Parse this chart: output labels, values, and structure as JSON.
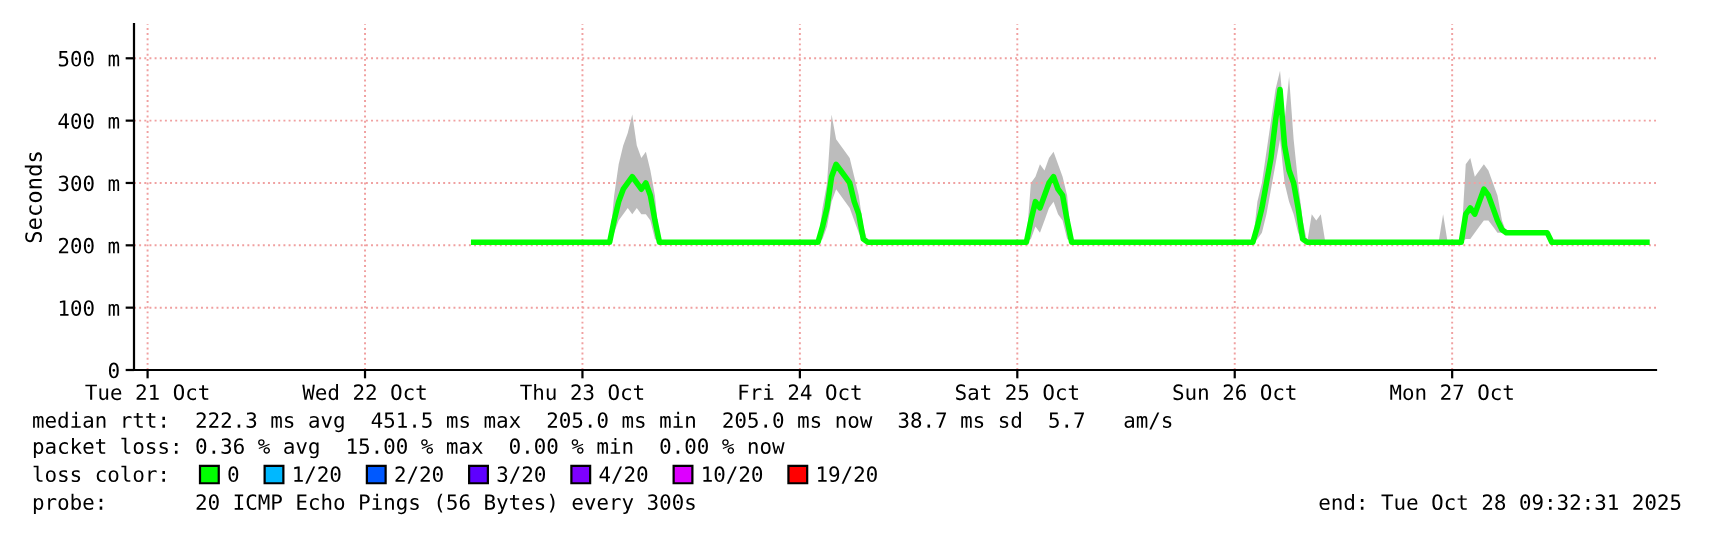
{
  "chart_data": {
    "type": "line",
    "ylabel": "Seconds",
    "xlim": [
      "2025-10-21T10:30",
      "2025-10-28T10:30"
    ],
    "xticks": [
      {
        "value": "2025-10-21T12:00",
        "label": "Tue 21 Oct"
      },
      {
        "value": "2025-10-22T12:00",
        "label": "Wed 22 Oct"
      },
      {
        "value": "2025-10-23T12:00",
        "label": "Thu 23 Oct"
      },
      {
        "value": "2025-10-24T12:00",
        "label": "Fri 24 Oct"
      },
      {
        "value": "2025-10-25T12:00",
        "label": "Sat 25 Oct"
      },
      {
        "value": "2025-10-26T12:00",
        "label": "Sun 26 Oct"
      },
      {
        "value": "2025-10-27T12:00",
        "label": "Mon 27 Oct"
      }
    ],
    "ylim": [
      0,
      555
    ],
    "yticks": [
      0,
      {
        "value": 100,
        "label": "100 m"
      },
      {
        "value": 200,
        "label": "200 m"
      },
      {
        "value": 300,
        "label": "300 m"
      },
      {
        "value": 400,
        "label": "400 m"
      },
      {
        "value": 500,
        "label": "500 m"
      }
    ],
    "grid": true,
    "legend": "bottom",
    "legend_title": "loss color:",
    "series": [
      {
        "name": "0",
        "color": "#00ff00",
        "x": [
          "2025-10-23T00:00",
          "2025-10-23T15:00",
          "2025-10-23T15:30",
          "2025-10-23T16:00",
          "2025-10-23T16:30",
          "2025-10-23T17:00",
          "2025-10-23T17:30",
          "2025-10-23T18:00",
          "2025-10-23T18:30",
          "2025-10-23T19:00",
          "2025-10-23T19:30",
          "2025-10-23T20:00",
          "2025-10-23T20:30",
          "2025-10-24T14:00",
          "2025-10-24T14:30",
          "2025-10-24T15:00",
          "2025-10-24T15:30",
          "2025-10-24T16:00",
          "2025-10-24T16:30",
          "2025-10-24T17:00",
          "2025-10-24T17:30",
          "2025-10-24T18:00",
          "2025-10-24T18:30",
          "2025-10-24T19:00",
          "2025-10-24T19:30",
          "2025-10-25T13:00",
          "2025-10-25T13:30",
          "2025-10-25T14:00",
          "2025-10-25T14:30",
          "2025-10-25T15:00",
          "2025-10-25T15:30",
          "2025-10-25T16:00",
          "2025-10-25T16:30",
          "2025-10-25T17:00",
          "2025-10-25T17:30",
          "2025-10-25T18:00",
          "2025-10-26T14:00",
          "2025-10-26T14:30",
          "2025-10-26T15:00",
          "2025-10-26T15:30",
          "2025-10-26T16:00",
          "2025-10-26T16:30",
          "2025-10-26T17:00",
          "2025-10-26T17:30",
          "2025-10-26T18:00",
          "2025-10-26T18:30",
          "2025-10-26T19:00",
          "2025-10-26T19:30",
          "2025-10-26T20:00",
          "2025-10-26T20:30",
          "2025-10-26T21:00",
          "2025-10-26T21:30",
          "2025-10-26T22:00",
          "2025-10-27T10:30",
          "2025-10-27T11:00",
          "2025-10-27T11:30",
          "2025-10-27T13:00",
          "2025-10-27T13:30",
          "2025-10-27T14:00",
          "2025-10-27T14:30",
          "2025-10-27T15:00",
          "2025-10-27T15:30",
          "2025-10-27T16:00",
          "2025-10-27T16:30",
          "2025-10-27T17:00",
          "2025-10-27T17:30",
          "2025-10-27T18:00",
          "2025-10-27T22:30",
          "2025-10-27T23:00",
          "2025-10-28T09:30"
        ],
        "values": [
          205,
          205,
          240,
          270,
          290,
          300,
          310,
          300,
          290,
          300,
          280,
          240,
          205,
          205,
          230,
          260,
          310,
          330,
          320,
          310,
          300,
          270,
          250,
          210,
          205,
          205,
          240,
          270,
          260,
          280,
          300,
          310,
          290,
          280,
          240,
          205,
          205,
          230,
          260,
          300,
          340,
          400,
          450,
          360,
          320,
          300,
          260,
          210,
          205,
          205,
          205,
          205,
          205,
          205,
          205,
          205,
          205,
          250,
          260,
          250,
          270,
          290,
          280,
          260,
          240,
          225,
          220,
          220,
          205,
          205
        ],
        "lower": [
          205,
          205,
          220,
          240,
          250,
          260,
          250,
          260,
          250,
          250,
          240,
          210,
          205,
          205,
          210,
          230,
          270,
          290,
          280,
          270,
          260,
          240,
          220,
          205,
          205,
          205,
          210,
          230,
          220,
          240,
          260,
          270,
          250,
          240,
          210,
          205,
          205,
          210,
          220,
          250,
          290,
          330,
          370,
          300,
          270,
          250,
          220,
          205,
          205,
          205,
          205,
          205,
          205,
          205,
          205,
          205,
          205,
          210,
          210,
          220,
          230,
          240,
          240,
          230,
          220,
          220,
          220,
          220,
          205,
          205
        ],
        "upper": [
          205,
          205,
          280,
          330,
          360,
          380,
          410,
          360,
          340,
          350,
          320,
          280,
          205,
          205,
          260,
          300,
          410,
          370,
          360,
          350,
          340,
          310,
          280,
          230,
          205,
          205,
          300,
          310,
          330,
          320,
          340,
          350,
          330,
          310,
          280,
          205,
          205,
          270,
          300,
          350,
          400,
          450,
          480,
          400,
          470,
          370,
          300,
          240,
          205,
          250,
          240,
          250,
          205,
          205,
          250,
          205,
          205,
          330,
          340,
          310,
          320,
          330,
          320,
          300,
          280,
          240,
          220,
          220,
          205,
          205
        ]
      },
      {
        "name": "1/20",
        "color": "#00b8ff"
      },
      {
        "name": "2/20",
        "color": "#0059ff"
      },
      {
        "name": "3/20",
        "color": "#5e00ff"
      },
      {
        "name": "4/20",
        "color": "#7e00ff"
      },
      {
        "name": "10/20",
        "color": "#dd00ff"
      },
      {
        "name": "19/20",
        "color": "#ff0000"
      }
    ],
    "annotations": [
      "median rtt:  222.3 ms avg  451.5 ms max  205.0 ms min  205.0 ms now  38.7 ms sd  5.7   am/s",
      "packet loss: 0.36 % avg  15.00 % max  0.00 % min  0.00 % now",
      "probe:       20 ICMP Echo Pings (56 Bytes) every 300s",
      "end: Tue Oct 28 09:32:31 2025"
    ]
  }
}
